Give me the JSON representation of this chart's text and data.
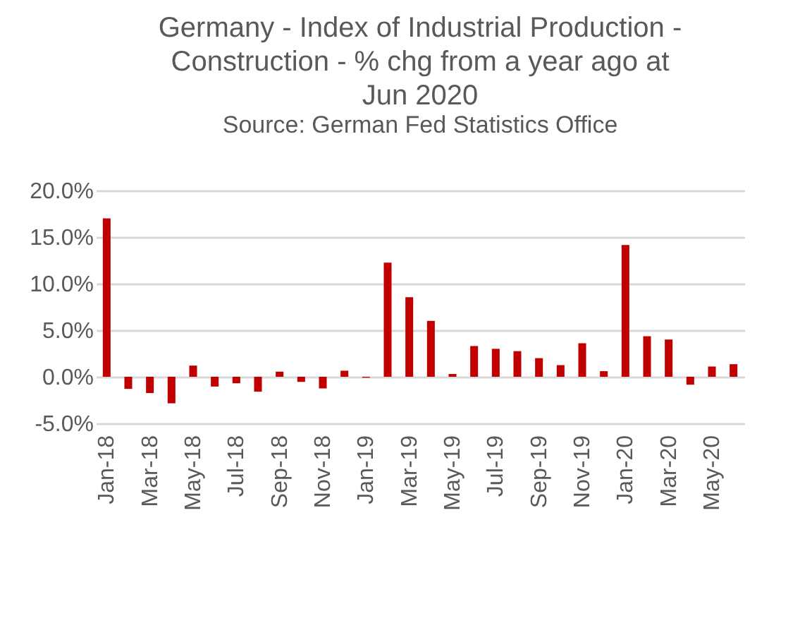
{
  "chart_data": {
    "type": "bar",
    "title": [
      "Germany - Index of Industrial Production -",
      "Construction - % chg from a year ago at",
      "Jun 2020"
    ],
    "categories": [
      "Jan-18",
      null,
      "Mar-18",
      null,
      "May-18",
      null,
      "Jul-18",
      null,
      "Sep-18",
      null,
      "Nov-18",
      null,
      "Jan-19",
      null,
      "Mar-19",
      null,
      "May-19",
      null,
      "Jul-19",
      null,
      "Sep-19",
      null,
      "Nov-19",
      null,
      "Jan-20",
      null,
      "Mar-20",
      null,
      "May-20",
      null
    ],
    "values": [
      17.0,
      -1.3,
      -1.75,
      -2.85,
      1.2,
      -1.05,
      -0.7,
      -1.6,
      0.55,
      -0.55,
      -1.25,
      0.65,
      -0.1,
      12.25,
      8.55,
      6.0,
      0.3,
      3.3,
      3.0,
      2.75,
      2.0,
      1.25,
      3.6,
      0.6,
      14.15,
      4.35,
      4.0,
      -0.85,
      1.1,
      1.35
    ],
    "color": "#c00000",
    "ylim": [
      -5,
      20
    ],
    "yticks": [
      {
        "value": -5,
        "label": "-5.0%"
      },
      {
        "value": 0,
        "label": "0.0%"
      },
      {
        "value": 5,
        "label": "5.0%"
      },
      {
        "value": 10,
        "label": "10.0%"
      },
      {
        "value": 15,
        "label": "15.0%"
      },
      {
        "value": 20,
        "label": "20.0%"
      }
    ],
    "grid": "y",
    "annotations": [
      "Source: German Fed Statistics Office"
    ]
  }
}
